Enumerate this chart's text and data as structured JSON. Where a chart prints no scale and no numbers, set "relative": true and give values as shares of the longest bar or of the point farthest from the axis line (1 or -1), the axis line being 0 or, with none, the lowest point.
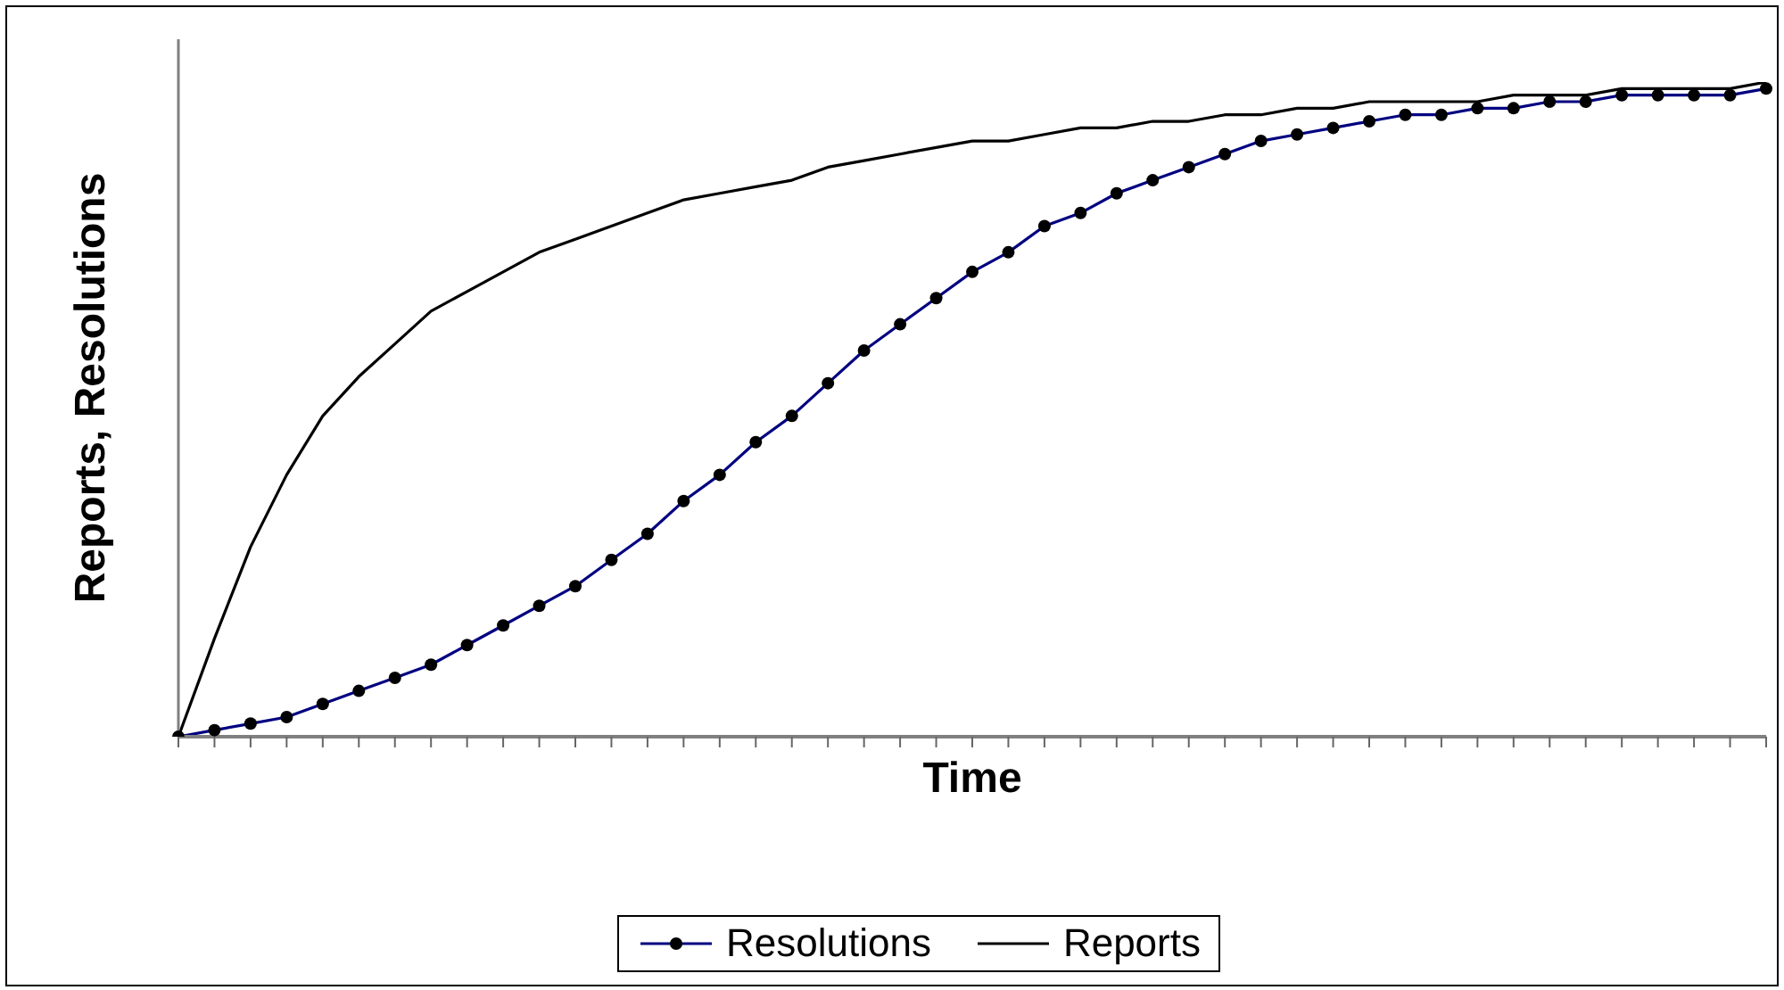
{
  "chart_data": {
    "type": "line",
    "relative": true,
    "xlabel": "Time",
    "ylabel": "Reports, Resolutions",
    "grid": false,
    "legend": "bottom",
    "marker": "circle",
    "line_style": "solid",
    "categories": [
      null,
      null,
      null,
      null,
      null,
      null,
      null,
      null,
      null,
      null,
      null,
      null,
      null,
      null,
      null,
      null,
      null,
      null,
      null,
      null,
      null,
      null,
      null,
      null,
      null,
      null,
      null,
      null,
      null,
      null,
      null,
      null,
      null,
      null,
      null,
      null,
      null,
      null,
      null,
      null,
      null,
      null,
      null,
      null,
      null
    ],
    "series": [
      {
        "name": "Resolutions",
        "color": "#000080",
        "values": [
          0,
          0.01,
          0.02,
          0.03,
          0.05,
          0.07,
          0.09,
          0.11,
          0.14,
          0.17,
          0.2,
          0.23,
          0.27,
          0.31,
          0.36,
          0.4,
          0.45,
          0.49,
          0.54,
          0.59,
          0.63,
          0.67,
          0.71,
          0.74,
          0.78,
          0.8,
          0.83,
          0.85,
          0.87,
          0.89,
          0.91,
          0.92,
          0.93,
          0.94,
          0.95,
          0.95,
          0.96,
          0.96,
          0.97,
          0.97,
          0.98,
          0.98,
          0.98,
          0.98,
          0.99
        ]
      },
      {
        "name": "Reports",
        "color": "#000000",
        "marker": "none",
        "values": [
          0,
          0.15,
          0.29,
          0.4,
          0.49,
          0.55,
          0.6,
          0.65,
          0.68,
          0.71,
          0.74,
          0.76,
          0.78,
          0.8,
          0.82,
          0.83,
          0.84,
          0.85,
          0.87,
          0.88,
          0.89,
          0.9,
          0.91,
          0.91,
          0.92,
          0.93,
          0.93,
          0.94,
          0.94,
          0.95,
          0.95,
          0.96,
          0.96,
          0.97,
          0.97,
          0.97,
          0.97,
          0.98,
          0.98,
          0.98,
          0.99,
          0.99,
          0.99,
          0.99,
          1
        ]
      }
    ]
  }
}
